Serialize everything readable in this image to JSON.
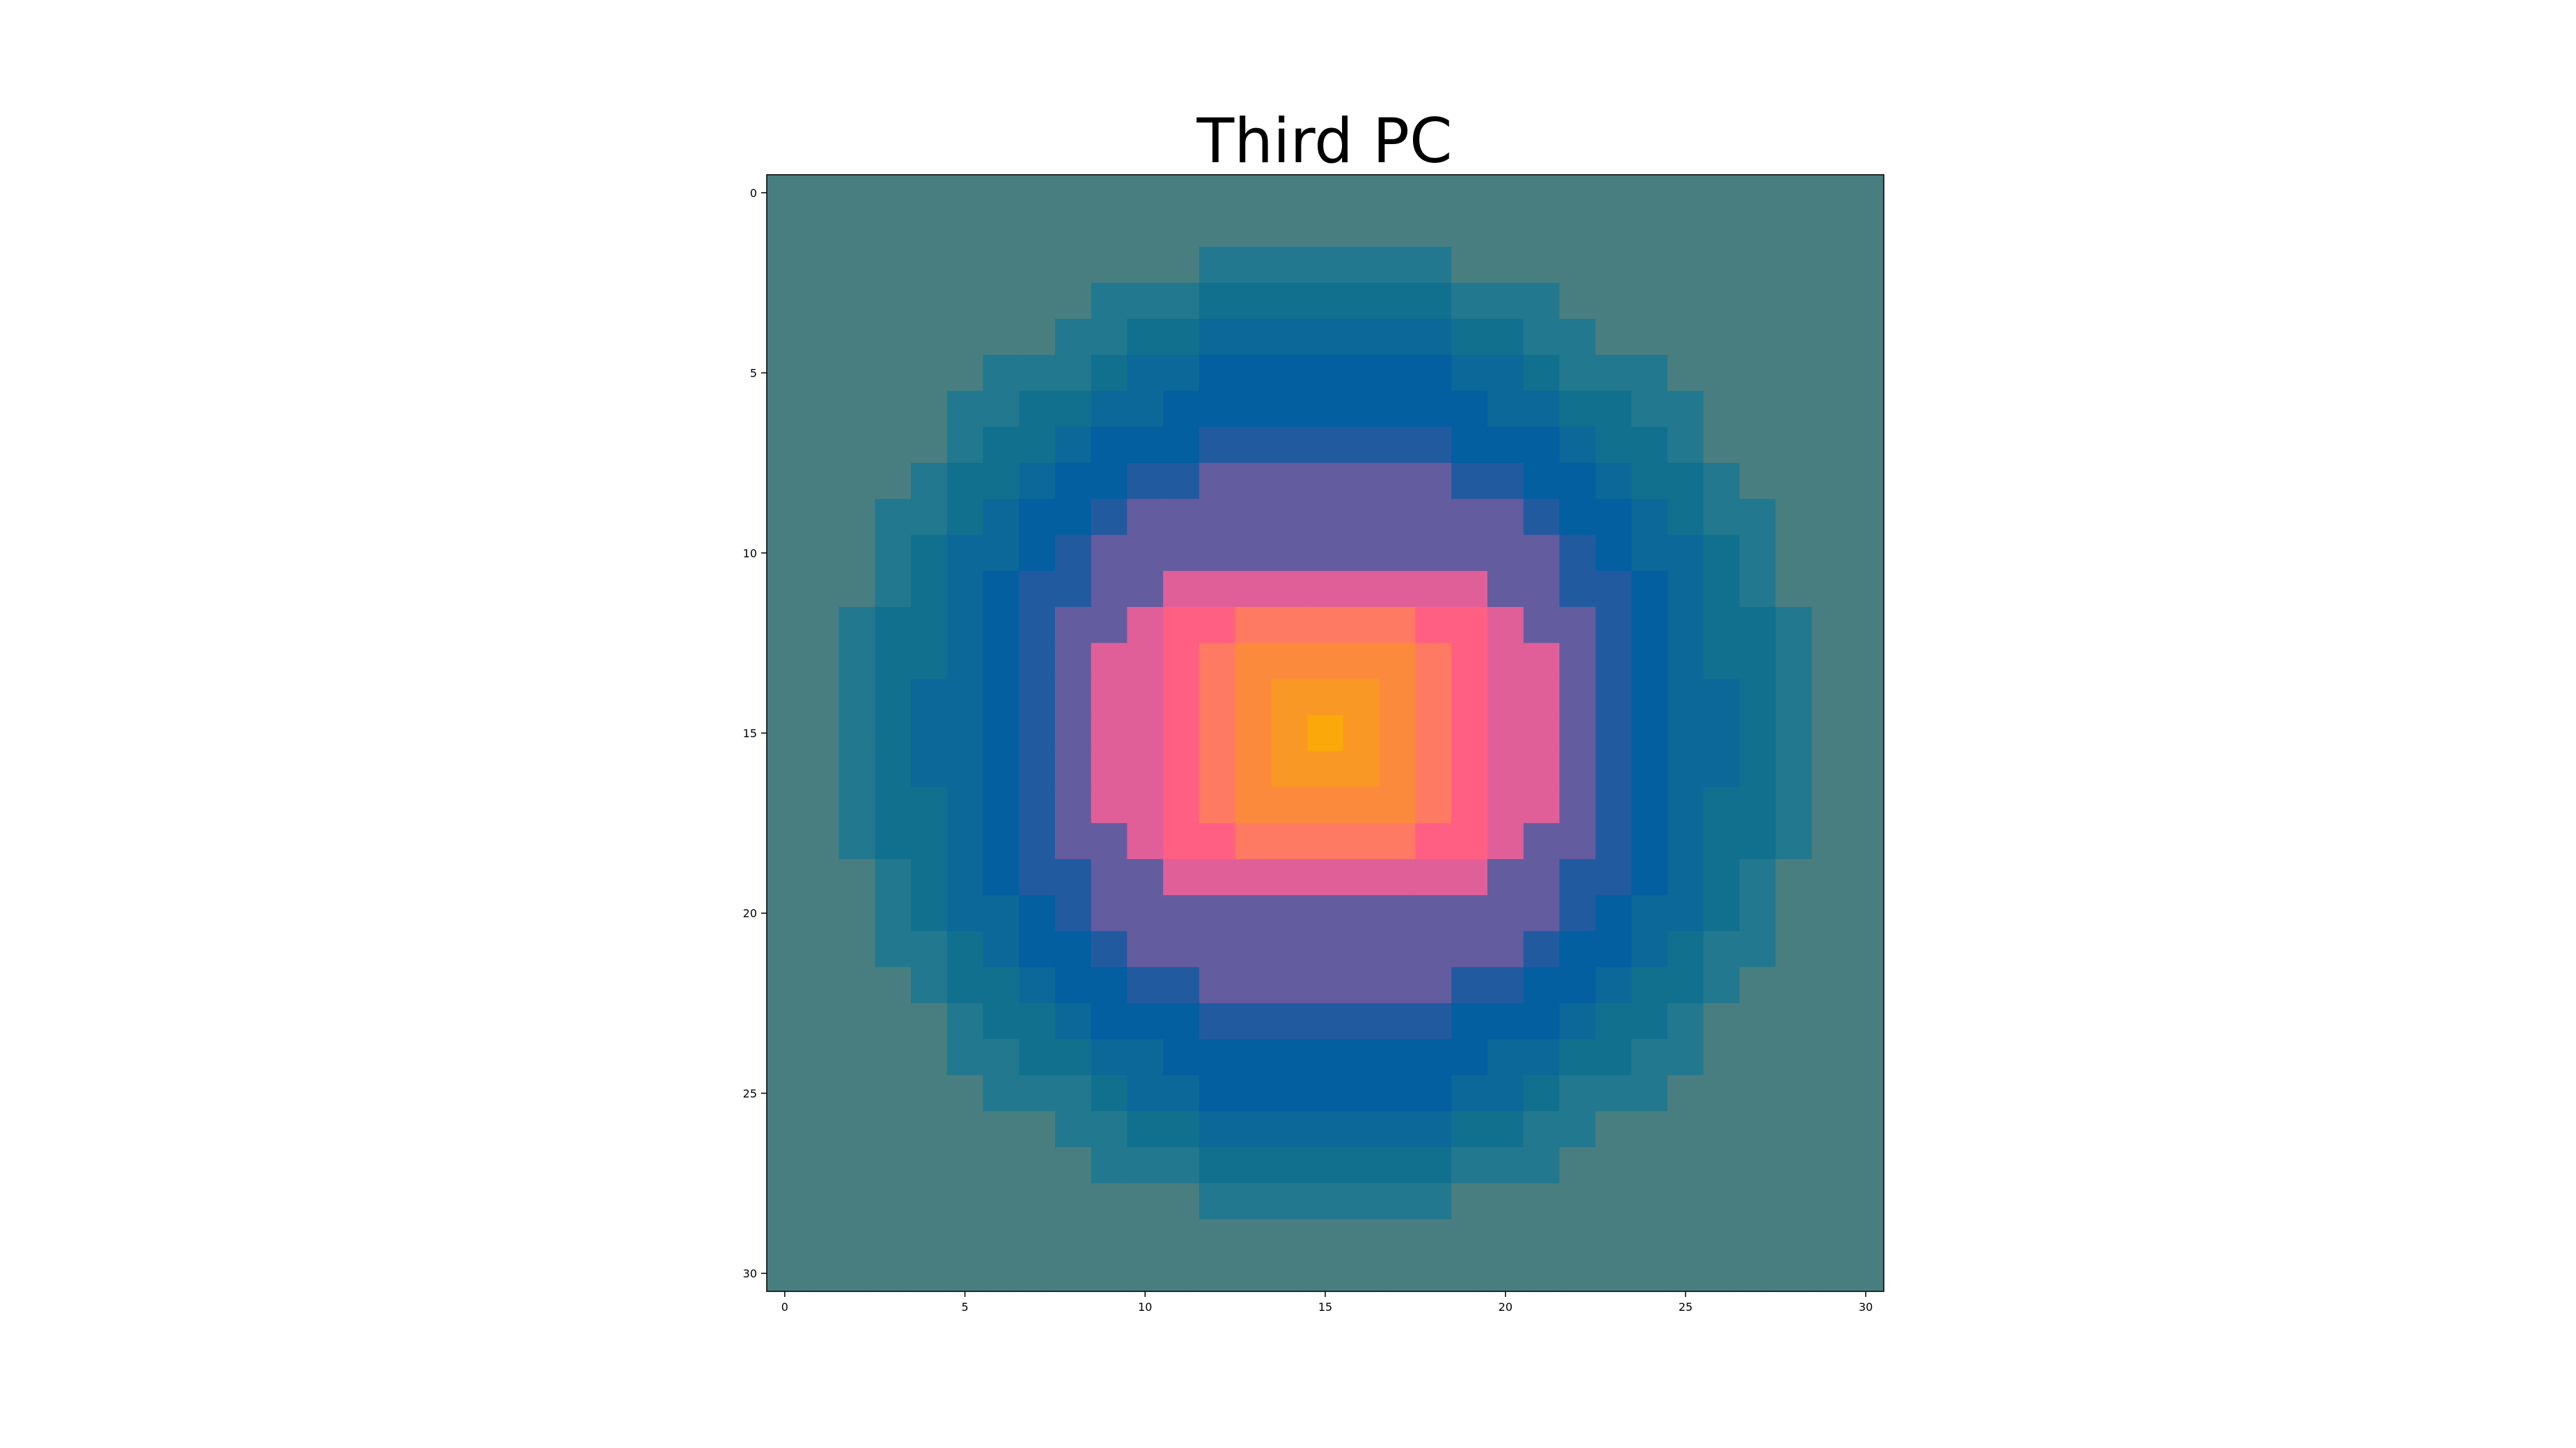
{
  "chart_data": {
    "type": "heatmap",
    "title": "Third PC",
    "xlabel": "",
    "ylabel": "",
    "rows": 31,
    "cols": 31,
    "xlim": [
      -0.5,
      30.5
    ],
    "ylim": [
      30.5,
      -0.5
    ],
    "x_ticks": [
      0,
      5,
      10,
      15,
      20,
      25,
      30
    ],
    "y_ticks": [
      0,
      5,
      10,
      15,
      20,
      25,
      30
    ],
    "x_tick_labels": [
      "0",
      "5",
      "10",
      "15",
      "20",
      "25",
      "30"
    ],
    "y_tick_labels": [
      "0",
      "5",
      "10",
      "15",
      "20",
      "25",
      "30"
    ],
    "center": [
      15,
      15
    ],
    "grid": false,
    "legend": "none",
    "value_range": [
      0,
      1
    ],
    "colormap": [
      "#497e80",
      "#22798f",
      "#12708f",
      "#0c6899",
      "#035fa0",
      "#225aa0",
      "#635c9f",
      "#e15f98",
      "#ff5f82",
      "#ff7a62",
      "#fb8a3d",
      "#fa9825",
      "#faa80a"
    ],
    "level_radii": [
      13.5,
      12.3,
      11.1,
      9.9,
      8.7,
      7.7,
      7.0,
      6.3,
      5.3,
      4.3,
      3.1,
      1.7,
      0.5
    ],
    "values": [
      [
        0,
        0,
        0,
        0,
        0,
        0,
        0,
        0,
        0,
        0,
        0,
        0,
        0,
        0,
        0,
        0,
        0,
        0,
        0,
        0,
        0,
        0,
        0,
        0,
        0,
        0,
        0,
        0,
        0,
        0,
        0
      ],
      [
        0,
        0,
        0,
        0,
        0,
        0,
        0,
        0,
        0,
        0,
        0,
        0,
        0,
        0,
        0,
        0,
        0,
        0,
        0,
        0,
        0,
        0,
        0,
        0,
        0,
        0,
        0,
        0,
        0,
        0,
        0
      ],
      [
        0,
        0,
        0,
        0,
        0,
        0,
        0,
        0,
        0,
        0,
        0,
        0,
        0.077,
        0.077,
        0.077,
        0.077,
        0.077,
        0.077,
        0.077,
        0,
        0,
        0,
        0,
        0,
        0,
        0,
        0,
        0,
        0,
        0,
        0
      ],
      [
        0,
        0,
        0,
        0,
        0,
        0,
        0,
        0,
        0,
        0.077,
        0.077,
        0.077,
        0.154,
        0.154,
        0.154,
        0.154,
        0.154,
        0.154,
        0.154,
        0.077,
        0.077,
        0.077,
        0,
        0,
        0,
        0,
        0,
        0,
        0,
        0,
        0
      ],
      [
        0,
        0,
        0,
        0,
        0,
        0,
        0,
        0,
        0.077,
        0.077,
        0.154,
        0.154,
        0.231,
        0.231,
        0.231,
        0.231,
        0.231,
        0.231,
        0.231,
        0.154,
        0.154,
        0.077,
        0.077,
        0,
        0,
        0,
        0,
        0,
        0,
        0,
        0
      ],
      [
        0,
        0,
        0,
        0,
        0,
        0,
        0.077,
        0.077,
        0.077,
        0.154,
        0.231,
        0.231,
        0.308,
        0.308,
        0.308,
        0.308,
        0.308,
        0.308,
        0.308,
        0.231,
        0.231,
        0.154,
        0.077,
        0.077,
        0.077,
        0,
        0,
        0,
        0,
        0,
        0
      ],
      [
        0,
        0,
        0,
        0,
        0,
        0.077,
        0.077,
        0.154,
        0.154,
        0.231,
        0.231,
        0.308,
        0.308,
        0.308,
        0.308,
        0.308,
        0.308,
        0.308,
        0.308,
        0.308,
        0.231,
        0.231,
        0.154,
        0.154,
        0.077,
        0.077,
        0,
        0,
        0,
        0,
        0
      ],
      [
        0,
        0,
        0,
        0,
        0,
        0.077,
        0.154,
        0.154,
        0.231,
        0.308,
        0.308,
        0.308,
        0.385,
        0.385,
        0.385,
        0.385,
        0.385,
        0.385,
        0.385,
        0.308,
        0.308,
        0.308,
        0.231,
        0.154,
        0.154,
        0.077,
        0,
        0,
        0,
        0,
        0
      ],
      [
        0,
        0,
        0,
        0,
        0.077,
        0.154,
        0.154,
        0.231,
        0.308,
        0.308,
        0.385,
        0.385,
        0.462,
        0.462,
        0.462,
        0.462,
        0.462,
        0.462,
        0.462,
        0.385,
        0.385,
        0.308,
        0.308,
        0.231,
        0.154,
        0.154,
        0.077,
        0,
        0,
        0,
        0
      ],
      [
        0,
        0,
        0,
        0.077,
        0.077,
        0.154,
        0.231,
        0.308,
        0.308,
        0.385,
        0.462,
        0.462,
        0.538,
        0.538,
        0.538,
        0.538,
        0.538,
        0.538,
        0.538,
        0.462,
        0.462,
        0.385,
        0.308,
        0.308,
        0.231,
        0.154,
        0.077,
        0.077,
        0,
        0,
        0
      ],
      [
        0,
        0,
        0,
        0.077,
        0.154,
        0.231,
        0.231,
        0.308,
        0.385,
        0.462,
        0.538,
        0.538,
        0.538,
        0.538,
        0.538,
        0.538,
        0.538,
        0.538,
        0.538,
        0.538,
        0.538,
        0.462,
        0.385,
        0.308,
        0.231,
        0.231,
        0.154,
        0.077,
        0,
        0,
        0
      ],
      [
        0,
        0,
        0,
        0.077,
        0.154,
        0.231,
        0.308,
        0.385,
        0.385,
        0.538,
        0.538,
        0.615,
        0.615,
        0.615,
        0.615,
        0.615,
        0.615,
        0.615,
        0.615,
        0.615,
        0.538,
        0.538,
        0.385,
        0.385,
        0.308,
        0.231,
        0.154,
        0.077,
        0,
        0,
        0
      ],
      [
        0,
        0,
        0.077,
        0.154,
        0.154,
        0.231,
        0.308,
        0.385,
        0.462,
        0.538,
        0.615,
        0.692,
        0.692,
        0.769,
        0.769,
        0.769,
        0.769,
        0.769,
        0.692,
        0.692,
        0.615,
        0.538,
        0.462,
        0.385,
        0.308,
        0.231,
        0.154,
        0.154,
        0.077,
        0,
        0
      ],
      [
        0,
        0,
        0.077,
        0.154,
        0.154,
        0.231,
        0.308,
        0.385,
        0.462,
        0.615,
        0.615,
        0.692,
        0.769,
        0.846,
        0.846,
        0.846,
        0.846,
        0.846,
        0.769,
        0.692,
        0.615,
        0.615,
        0.462,
        0.385,
        0.308,
        0.231,
        0.154,
        0.154,
        0.077,
        0,
        0
      ],
      [
        0,
        0,
        0.077,
        0.154,
        0.231,
        0.231,
        0.308,
        0.385,
        0.462,
        0.615,
        0.615,
        0.692,
        0.769,
        0.846,
        0.923,
        0.923,
        0.923,
        0.846,
        0.769,
        0.692,
        0.615,
        0.615,
        0.462,
        0.385,
        0.308,
        0.231,
        0.231,
        0.154,
        0.077,
        0,
        0
      ],
      [
        0,
        0,
        0.077,
        0.154,
        0.231,
        0.231,
        0.308,
        0.385,
        0.462,
        0.615,
        0.615,
        0.692,
        0.769,
        0.846,
        0.923,
        1.0,
        0.923,
        0.846,
        0.769,
        0.692,
        0.615,
        0.615,
        0.462,
        0.385,
        0.308,
        0.231,
        0.231,
        0.154,
        0.077,
        0,
        0
      ],
      [
        0,
        0,
        0.077,
        0.154,
        0.231,
        0.231,
        0.308,
        0.385,
        0.462,
        0.615,
        0.615,
        0.692,
        0.769,
        0.846,
        0.923,
        0.923,
        0.923,
        0.846,
        0.769,
        0.692,
        0.615,
        0.615,
        0.462,
        0.385,
        0.308,
        0.231,
        0.231,
        0.154,
        0.077,
        0,
        0
      ],
      [
        0,
        0,
        0.077,
        0.154,
        0.154,
        0.231,
        0.308,
        0.385,
        0.462,
        0.615,
        0.615,
        0.692,
        0.769,
        0.846,
        0.846,
        0.846,
        0.846,
        0.846,
        0.769,
        0.692,
        0.615,
        0.615,
        0.462,
        0.385,
        0.308,
        0.231,
        0.154,
        0.154,
        0.077,
        0,
        0
      ],
      [
        0,
        0,
        0.077,
        0.154,
        0.154,
        0.231,
        0.308,
        0.385,
        0.462,
        0.538,
        0.615,
        0.692,
        0.692,
        0.769,
        0.769,
        0.769,
        0.769,
        0.769,
        0.692,
        0.692,
        0.615,
        0.538,
        0.462,
        0.385,
        0.308,
        0.231,
        0.154,
        0.154,
        0.077,
        0,
        0
      ],
      [
        0,
        0,
        0,
        0.077,
        0.154,
        0.231,
        0.308,
        0.385,
        0.385,
        0.538,
        0.538,
        0.615,
        0.615,
        0.615,
        0.615,
        0.615,
        0.615,
        0.615,
        0.615,
        0.615,
        0.538,
        0.538,
        0.385,
        0.385,
        0.308,
        0.231,
        0.154,
        0.077,
        0,
        0,
        0
      ],
      [
        0,
        0,
        0,
        0.077,
        0.154,
        0.231,
        0.231,
        0.308,
        0.385,
        0.462,
        0.538,
        0.538,
        0.538,
        0.538,
        0.538,
        0.538,
        0.538,
        0.538,
        0.538,
        0.538,
        0.538,
        0.462,
        0.385,
        0.308,
        0.231,
        0.231,
        0.154,
        0.077,
        0,
        0,
        0
      ],
      [
        0,
        0,
        0,
        0.077,
        0.077,
        0.154,
        0.231,
        0.308,
        0.308,
        0.385,
        0.462,
        0.462,
        0.538,
        0.538,
        0.538,
        0.538,
        0.538,
        0.538,
        0.538,
        0.462,
        0.462,
        0.385,
        0.308,
        0.308,
        0.231,
        0.154,
        0.077,
        0.077,
        0,
        0,
        0
      ],
      [
        0,
        0,
        0,
        0,
        0.077,
        0.154,
        0.154,
        0.231,
        0.308,
        0.308,
        0.385,
        0.385,
        0.462,
        0.462,
        0.462,
        0.462,
        0.462,
        0.462,
        0.462,
        0.385,
        0.385,
        0.308,
        0.308,
        0.231,
        0.154,
        0.154,
        0.077,
        0,
        0,
        0,
        0
      ],
      [
        0,
        0,
        0,
        0,
        0,
        0.077,
        0.154,
        0.154,
        0.231,
        0.308,
        0.308,
        0.308,
        0.385,
        0.385,
        0.385,
        0.385,
        0.385,
        0.385,
        0.385,
        0.308,
        0.308,
        0.308,
        0.231,
        0.154,
        0.154,
        0.077,
        0,
        0,
        0,
        0,
        0
      ],
      [
        0,
        0,
        0,
        0,
        0,
        0.077,
        0.077,
        0.154,
        0.154,
        0.231,
        0.231,
        0.308,
        0.308,
        0.308,
        0.308,
        0.308,
        0.308,
        0.308,
        0.308,
        0.308,
        0.231,
        0.231,
        0.154,
        0.154,
        0.077,
        0.077,
        0,
        0,
        0,
        0,
        0
      ],
      [
        0,
        0,
        0,
        0,
        0,
        0,
        0.077,
        0.077,
        0.077,
        0.154,
        0.231,
        0.231,
        0.308,
        0.308,
        0.308,
        0.308,
        0.308,
        0.308,
        0.308,
        0.231,
        0.231,
        0.154,
        0.077,
        0.077,
        0.077,
        0,
        0,
        0,
        0,
        0,
        0
      ],
      [
        0,
        0,
        0,
        0,
        0,
        0,
        0,
        0,
        0.077,
        0.077,
        0.154,
        0.154,
        0.231,
        0.231,
        0.231,
        0.231,
        0.231,
        0.231,
        0.231,
        0.154,
        0.154,
        0.077,
        0.077,
        0,
        0,
        0,
        0,
        0,
        0,
        0,
        0
      ],
      [
        0,
        0,
        0,
        0,
        0,
        0,
        0,
        0,
        0,
        0.077,
        0.077,
        0.077,
        0.154,
        0.154,
        0.154,
        0.154,
        0.154,
        0.154,
        0.154,
        0.077,
        0.077,
        0.077,
        0,
        0,
        0,
        0,
        0,
        0,
        0,
        0,
        0
      ],
      [
        0,
        0,
        0,
        0,
        0,
        0,
        0,
        0,
        0,
        0,
        0,
        0,
        0.077,
        0.077,
        0.077,
        0.077,
        0.077,
        0.077,
        0.077,
        0,
        0,
        0,
        0,
        0,
        0,
        0,
        0,
        0,
        0,
        0,
        0
      ],
      [
        0,
        0,
        0,
        0,
        0,
        0,
        0,
        0,
        0,
        0,
        0,
        0,
        0,
        0,
        0,
        0,
        0,
        0,
        0,
        0,
        0,
        0,
        0,
        0,
        0,
        0,
        0,
        0,
        0,
        0,
        0
      ],
      [
        0,
        0,
        0,
        0,
        0,
        0,
        0,
        0,
        0,
        0,
        0,
        0,
        0,
        0,
        0,
        0,
        0,
        0,
        0,
        0,
        0,
        0,
        0,
        0,
        0,
        0,
        0,
        0,
        0,
        0,
        0
      ]
    ]
  }
}
